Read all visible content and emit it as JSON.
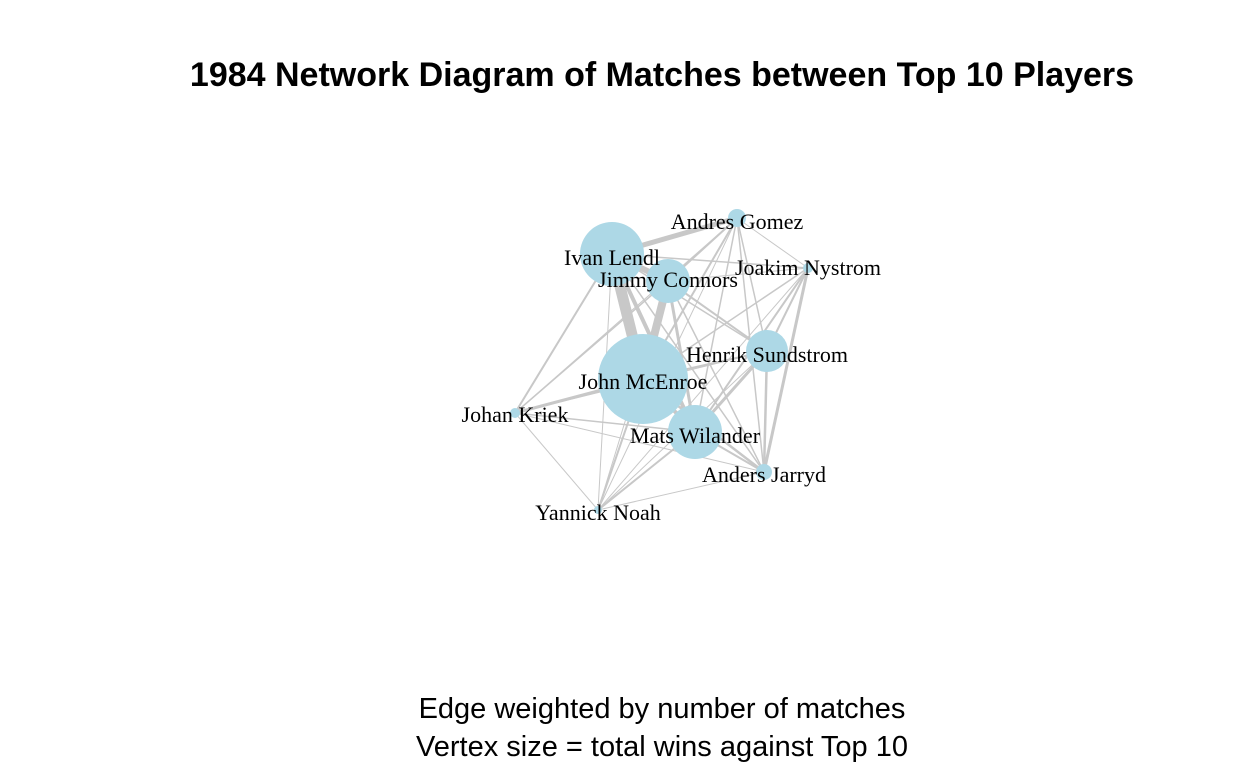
{
  "title": "1984 Network Diagram of Matches between Top 10 Players",
  "caption": {
    "line1": "Edge weighted by number of matches",
    "line2": "Vertex size = total wins against Top 10"
  },
  "colors": {
    "vertex": "#add8e6",
    "edge": "#c8c8c8",
    "label": "#000000",
    "background": "#ffffff"
  },
  "vertices": [
    {
      "id": "lendl",
      "label": "Ivan Lendl"
    },
    {
      "id": "connors",
      "label": "Jimmy Connors"
    },
    {
      "id": "gomez",
      "label": "Andres Gomez"
    },
    {
      "id": "nystrom",
      "label": "Joakim Nystrom"
    },
    {
      "id": "sundstrom",
      "label": "Henrik Sundstrom"
    },
    {
      "id": "mcenroe",
      "label": "John McEnroe"
    },
    {
      "id": "kriek",
      "label": "Johan Kriek"
    },
    {
      "id": "wilander",
      "label": "Mats Wilander"
    },
    {
      "id": "jarryd",
      "label": "Anders Jarryd"
    },
    {
      "id": "noah",
      "label": "Yannick Noah"
    }
  ]
}
